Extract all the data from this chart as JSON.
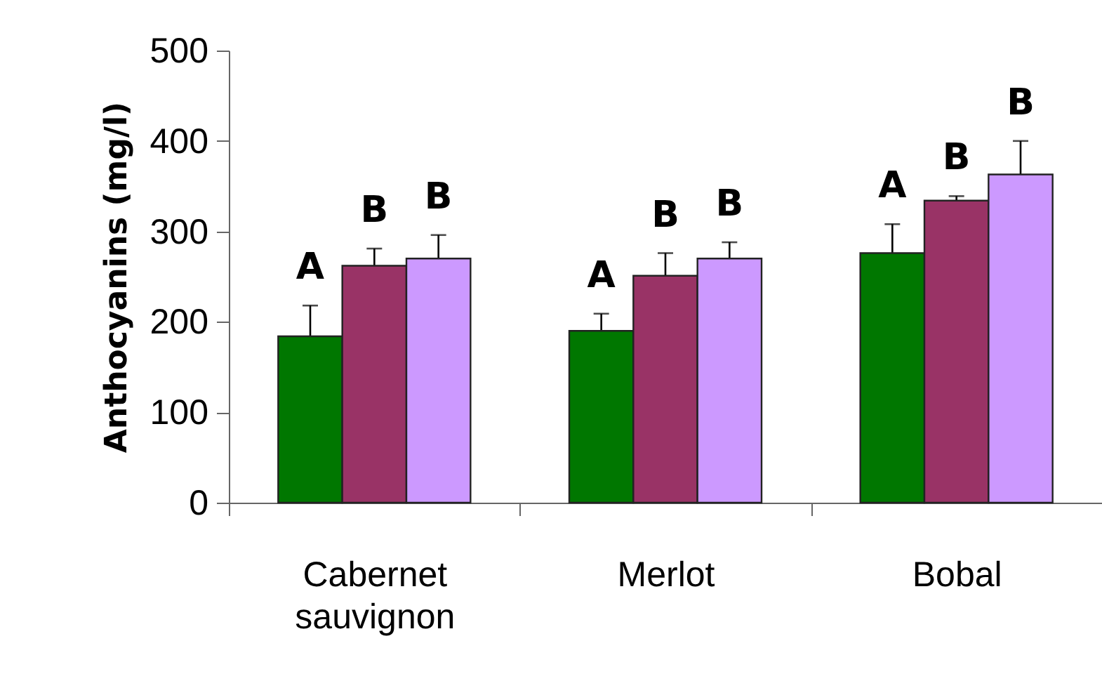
{
  "chart_data": {
    "type": "bar",
    "ylabel": "Anthocyanins (mg/l)",
    "categories": [
      "Cabernet sauvignon",
      "Merlot",
      "Bobal"
    ],
    "series": [
      {
        "color": "#007700",
        "values": [
          184,
          190,
          276
        ],
        "errors": [
          34,
          19,
          32
        ],
        "value_labels": [
          "A",
          "A",
          "A"
        ]
      },
      {
        "color": "#993366",
        "values": [
          262,
          251,
          334
        ],
        "errors": [
          19,
          25,
          5
        ],
        "value_labels": [
          "B",
          "B",
          "B"
        ]
      },
      {
        "color": "#cc99ff",
        "values": [
          270,
          270,
          363
        ],
        "errors": [
          26,
          18,
          37
        ],
        "value_labels": [
          "B",
          "B",
          "B"
        ]
      }
    ],
    "ylim": [
      0,
      500
    ],
    "yticks": [
      0,
      100,
      200,
      300,
      400,
      500
    ],
    "grid": false,
    "legend": false
  }
}
